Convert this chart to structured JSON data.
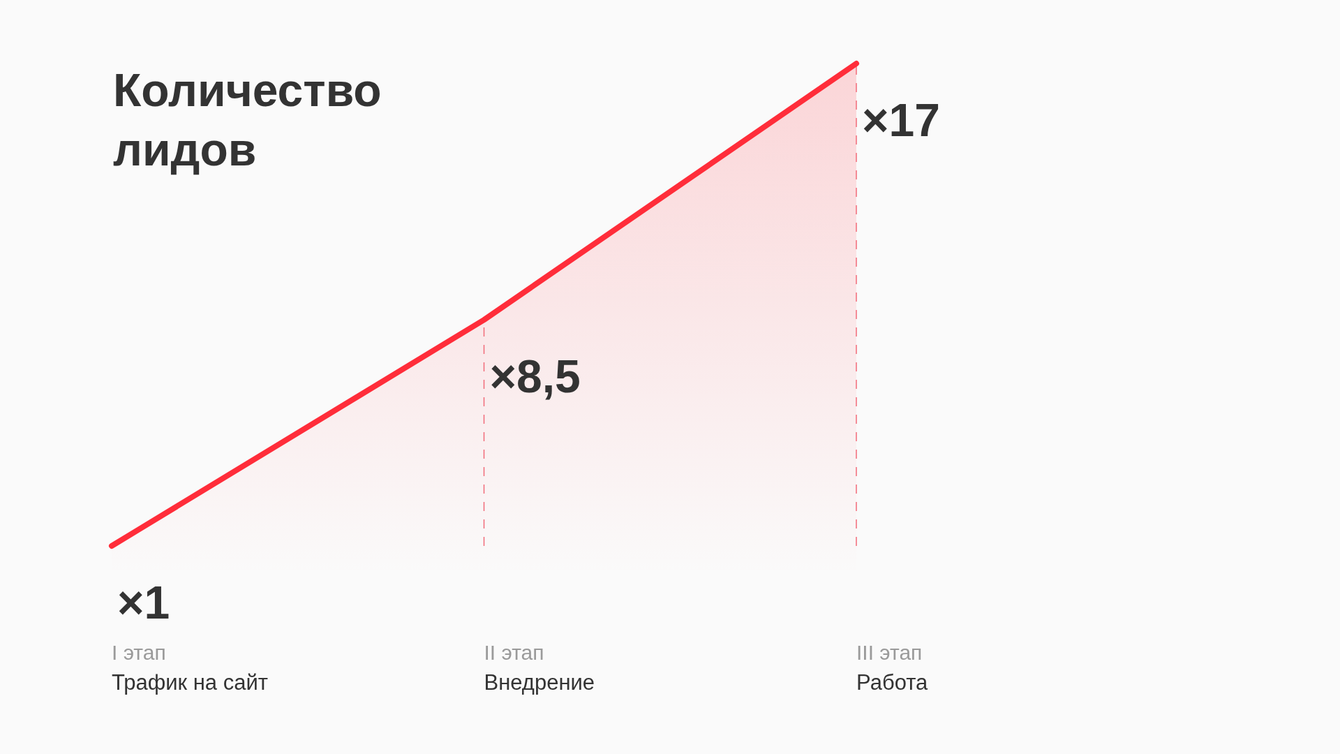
{
  "chart_data": {
    "type": "area",
    "title": "Количество лидов",
    "categories": [
      "I этап\nТрафик на сайт",
      "II этап\nВнедрение",
      "III этап\nРабота"
    ],
    "series": [
      {
        "color": "#ff2d3a",
        "values": [
          1,
          8.5,
          17
        ],
        "value_labels": [
          "×1",
          "×8,5",
          "×17"
        ]
      }
    ],
    "ref_lines": [
      {
        "axis": "x",
        "value": "II этап\nВнедрение",
        "color": "#f26b7a",
        "line_style": "dashed"
      },
      {
        "axis": "x",
        "value": "III этап\nРабота",
        "color": "#f26b7a",
        "line_style": "dashed"
      }
    ]
  }
}
